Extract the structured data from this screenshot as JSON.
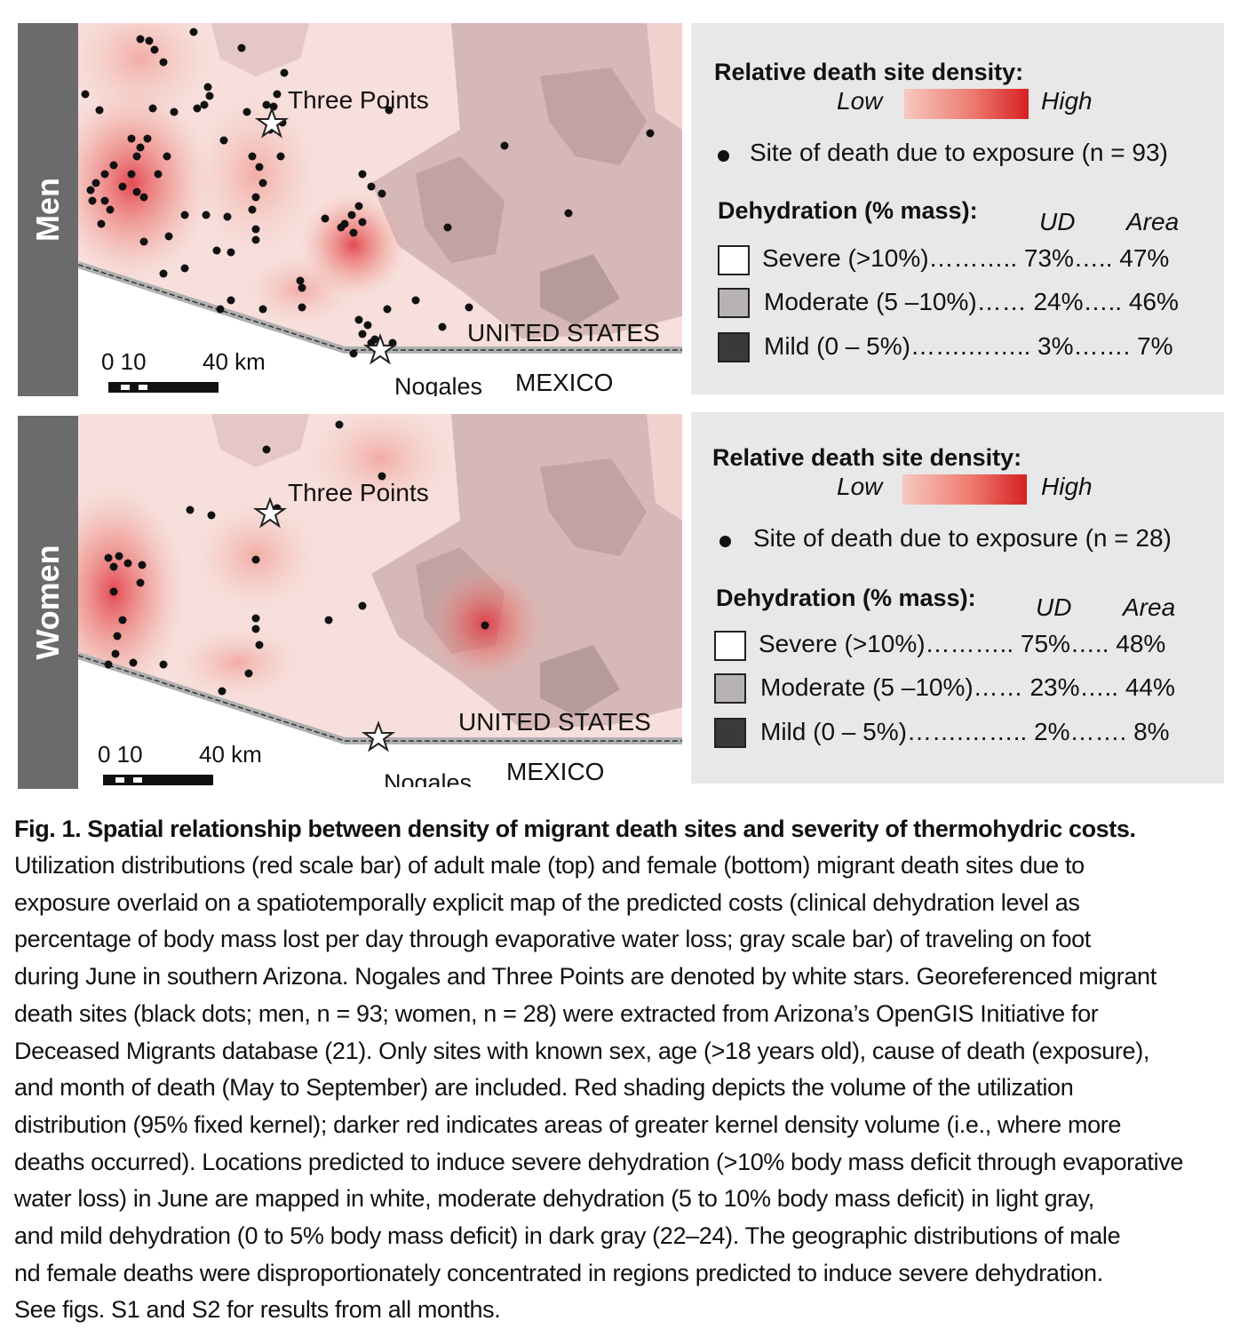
{
  "panels": [
    {
      "side_label": "Men",
      "map": {
        "town_north": "Three Points",
        "town_south": "Nogales",
        "country_north": "UNITED STATES",
        "country_south": "MEXICO",
        "scale_label_left": "0 10",
        "scale_label_right": "40 km"
      },
      "legend": {
        "density_title": "Relative death site density:",
        "low": "Low",
        "high": "High",
        "dot_label": "Site of death due to exposure (n = 93)",
        "dehydration_title": "Dehydration (% mass):",
        "col_ud": "UD",
        "col_area": "Area",
        "rows": [
          {
            "label": "Severe (>10%)……….. 73%….. 47%",
            "color": "#ffffff"
          },
          {
            "label": "Moderate (5 –10%)…… 24%….. 46%",
            "color": "#b8b3b3"
          },
          {
            "label": "Mild (0 – 5%)…….…….. 3%……. 7%",
            "color": "#3a3a3a"
          }
        ]
      }
    },
    {
      "side_label": "Women",
      "map": {
        "town_north": "Three Points",
        "town_south": "Nogales",
        "country_north": "UNITED STATES",
        "country_south": "MEXICO",
        "scale_label_left": "0 10",
        "scale_label_right": "40 km"
      },
      "legend": {
        "density_title": "Relative death site density:",
        "low": "Low",
        "high": "High",
        "dot_label": "Site of death due to exposure (n = 28)",
        "dehydration_title": "Dehydration (% mass):",
        "col_ud": "UD",
        "col_area": "Area",
        "rows": [
          {
            "label": "Severe (>10%)……….. 75%….. 48%",
            "color": "#ffffff"
          },
          {
            "label": "Moderate (5 –10%)…… 23%….. 44%",
            "color": "#b8b3b3"
          },
          {
            "label": "Mild (0 – 5%)…….…….. 2%……. 8%",
            "color": "#3a3a3a"
          }
        ]
      }
    }
  ],
  "caption": {
    "title": "Fig. 1. Spatial relationship between density of migrant death sites and severity of thermohydric costs.",
    "lines": [
      "Utilization distributions (red scale bar) of adult male (top) and female (bottom) migrant death sites due to",
      "exposure overlaid on a spatiotemporally explicit map of the predicted costs (clinical dehydration level as",
      "percentage of body mass lost per day through evaporative water loss; gray scale bar) of traveling on foot",
      "during June in southern Arizona. Nogales and Three Points are denoted by white stars. Georeferenced migrant",
      "death sites (black dots; men, n = 93; women, n = 28) were extracted from Arizona’s OpenGIS Initiative for",
      "Deceased Migrants database (21). Only sites with known sex, age (>18 years old), cause of death (exposure),",
      "and month of death (May to September) are included. Red shading depicts the volume of the utilization",
      "distribution (95% fixed kernel); darker red indicates areas of greater kernel density volume (i.e., where more",
      "deaths occurred). Locations predicted to induce severe dehydration (>10% body mass deficit through evaporative",
      "water loss) in June are mapped in white, moderate dehydration (5 to 10% body mass deficit) in light gray,",
      "and mild dehydration (0 to 5% body mass deficit) in dark gray (22–24). The geographic distributions of male",
      "nd female deaths were disproportionately concentrated in regions predicted to induce severe dehydration.",
      "See figs. S1 and S2 for results from all months."
    ]
  },
  "colors": {
    "side_tab": "#6b6b6b",
    "legend_bg": "#e8e8e8",
    "map_base": "#f6dcd8",
    "moderate_gray": "#c9a9a9",
    "density_high": "#d62023"
  }
}
